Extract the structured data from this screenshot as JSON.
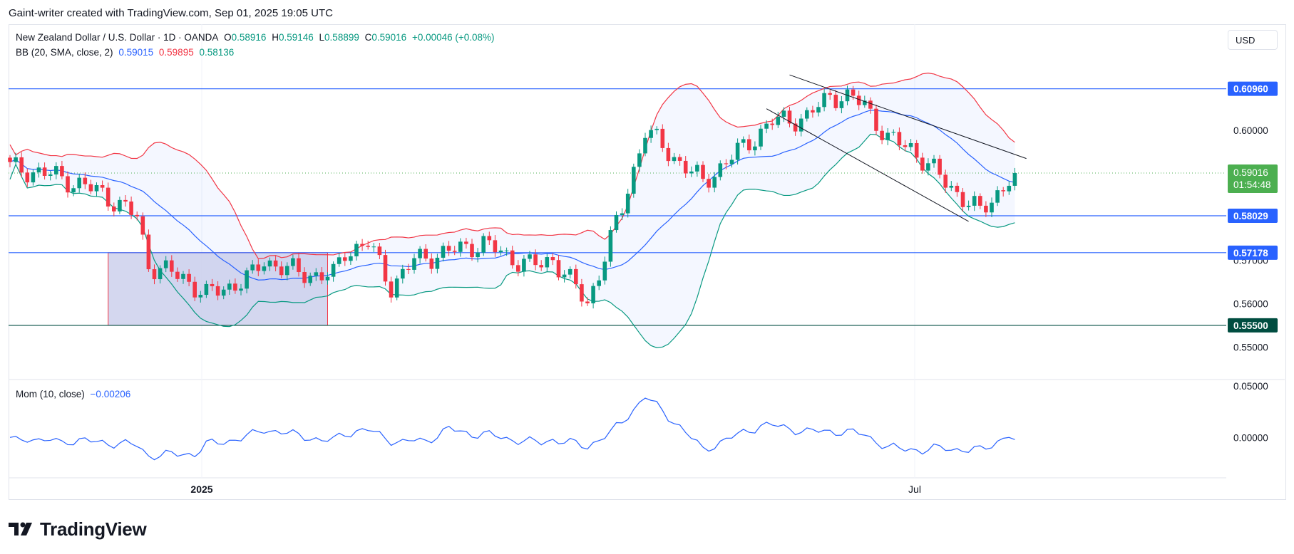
{
  "header": {
    "credit": "Gaint-writer created with TradingView.com, Sep 01, 2025 19:05 UTC"
  },
  "legend": {
    "symbol": "New Zealand Dollar / U.S. Dollar · 1D · OANDA",
    "o_label": "O",
    "o": "0.58916",
    "h_label": "H",
    "h": "0.59146",
    "l_label": "L",
    "l": "0.58899",
    "c_label": "C",
    "c": "0.59016",
    "change": "+0.00046 (+0.08%)",
    "bb_label": "BB (20, SMA, close, 2)",
    "bb_basis": "0.59015",
    "bb_upper": "0.59895",
    "bb_lower": "0.58136"
  },
  "mom_legend": {
    "label": "Mom (10, close)",
    "value": "−0.00206"
  },
  "currency": "USD",
  "price_axis_ticks": [
    "0.60000",
    "0.57000",
    "0.56000",
    "0.55000"
  ],
  "mom_axis_ticks": [
    "0.05000",
    "0.00000"
  ],
  "time_labels": [
    "2025",
    "Jul"
  ],
  "level_tags": [
    {
      "value": "0.60960",
      "color": "#2962ff"
    },
    {
      "value": "0.58029",
      "color": "#2962ff"
    },
    {
      "value": "0.57178",
      "color": "#2962ff"
    },
    {
      "value": "0.55500",
      "color": "#004d40"
    }
  ],
  "last_price_tag": {
    "value": "0.59016",
    "countdown": "01:54:48",
    "color": "#4caf50"
  },
  "brand": {
    "name": "TradingView"
  },
  "colors": {
    "up": "#089981",
    "down": "#f23645",
    "bb_upper": "#f23645",
    "bb_basis": "#2962ff",
    "bb_lower": "#089981",
    "mom": "#2962ff",
    "range_fill": "#c5cae9"
  },
  "chart_data": {
    "type": "candlestick",
    "symbol": "NZDUSD",
    "interval": "1D",
    "y_range": [
      0.5425,
      0.6245
    ],
    "mom_range": [
      -0.0392,
      0.0562
    ],
    "horizontal_levels": [
      0.6096,
      0.58029,
      0.57178,
      0.555
    ],
    "last_close": 0.59016,
    "candles": [],
    "bb_upper": [],
    "bb_basis": [],
    "bb_lower": [],
    "momentum": []
  }
}
